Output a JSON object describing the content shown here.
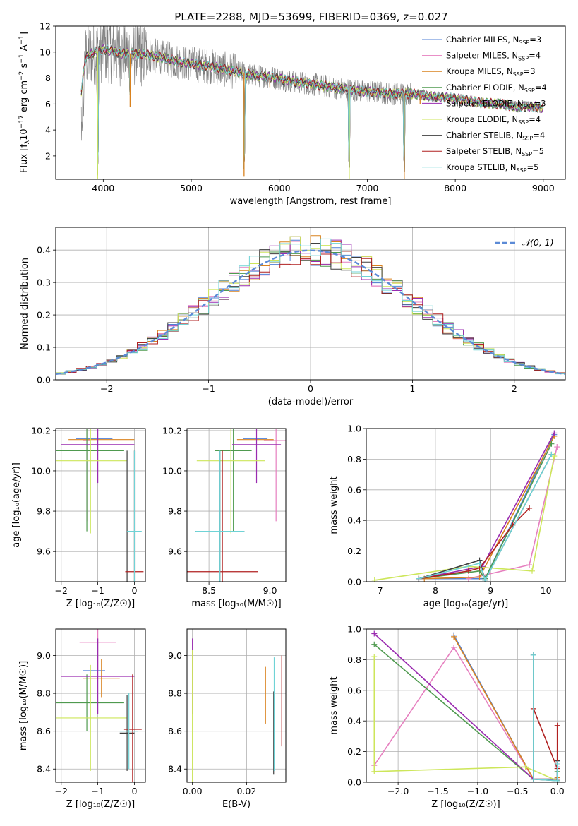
{
  "figure": {
    "title": "PLATE=2288, MJD=53699, FIBERID=0369, z=0.027"
  },
  "model_colors": {
    "Chabrier MILES": "#4f7fd6",
    "Salpeter MILES": "#e67fbf",
    "Kroupa MILES": "#d9821f",
    "Chabrier ELODIE": "#4f9a4f",
    "Salpeter ELODIE": "#9a2bb0",
    "Kroupa ELODIE": "#cde65a",
    "Chabrier STELIB": "#3f3f3f",
    "Salpeter STELIB": "#b02020",
    "Kroupa STELIB": "#6fd3d6",
    "data": "#808080"
  },
  "chart_data": [
    {
      "id": "spectrum",
      "type": "line",
      "title": "PLATE=2288, MJD=53699, FIBERID=0369, z=0.027",
      "xlabel": "wavelength [Angstrom, rest frame]",
      "ylabel_parts": [
        "Flux [f",
        "λ",
        "10",
        "−17",
        " erg cm",
        "−2",
        " s",
        "−1",
        " A",
        "−1",
        "]"
      ],
      "xlim": [
        3460,
        9250
      ],
      "ylim": [
        0.2,
        12
      ],
      "xticks": [
        4000,
        5000,
        6000,
        7000,
        8000,
        9000
      ],
      "yticks": [
        2,
        4,
        6,
        8,
        10,
        12
      ],
      "grid": false,
      "legend_position": "top-right",
      "legend": [
        {
          "name": "Chabrier MILES",
          "nssp": "3"
        },
        {
          "name": "Salpeter MILES",
          "nssp": "4"
        },
        {
          "name": "Kroupa MILES",
          "nssp": "3"
        },
        {
          "name": "Chabrier ELODIE",
          "nssp": "4"
        },
        {
          "name": "Salpeter ELODIE",
          "nssp": "3"
        },
        {
          "name": "Kroupa ELODIE",
          "nssp": "4"
        },
        {
          "name": "Chabrier STELIB",
          "nssp": "4"
        },
        {
          "name": "Salpeter STELIB",
          "nssp": "5"
        },
        {
          "name": "Kroupa STELIB",
          "nssp": "5"
        }
      ],
      "continuum": {
        "x": [
          3750,
          3800,
          3900,
          4000,
          4100,
          4200,
          4300,
          4500,
          4700,
          4900,
          5100,
          5300,
          5500,
          5700,
          5900,
          6100,
          6300,
          6500,
          6700,
          6900,
          7100,
          7300,
          7500,
          7700,
          7900,
          8100,
          8300,
          8500,
          8700,
          8900,
          9000
        ],
        "y": [
          7.0,
          9.6,
          10.0,
          10.2,
          10.1,
          9.9,
          9.9,
          9.8,
          9.5,
          9.2,
          9.0,
          8.8,
          8.5,
          8.2,
          8.1,
          7.8,
          7.6,
          7.4,
          7.2,
          7.0,
          6.9,
          6.8,
          6.8,
          6.6,
          6.5,
          6.3,
          6.1,
          6.0,
          5.8,
          5.8,
          5.7
        ]
      },
      "dips": [
        {
          "x": 3935,
          "y": 0.2
        },
        {
          "x": 4305,
          "y": 5.8
        },
        {
          "x": 5600,
          "y": 0.4
        },
        {
          "x": 6795,
          "y": 0.2
        },
        {
          "x": 7420,
          "y": 0.2
        },
        {
          "x": 5893,
          "y": 7.3
        },
        {
          "x": 7600,
          "y": 6.0
        }
      ]
    },
    {
      "id": "residual_hist",
      "type": "histogram",
      "xlabel": "(data-model)/error",
      "ylabel": "Normed distribution",
      "xlim": [
        -2.5,
        2.5
      ],
      "ylim": [
        0,
        0.47
      ],
      "xticks": [
        -2,
        -1,
        0,
        1,
        2
      ],
      "yticks": [
        0.0,
        0.1,
        0.2,
        0.3,
        0.4
      ],
      "grid": true,
      "legend_position": "top-right",
      "legend_label": "𝒩(0, 1)",
      "bin_width": 0.1,
      "normal_curve": {
        "mean": 0,
        "sigma": 1
      }
    },
    {
      "id": "age_vs_Z",
      "type": "errorbar",
      "xlabel": "Z [log₁₀(Z/Z☉)]",
      "ylabel": "age  [log₁₀(age/yr)]",
      "xlim": [
        -2.15,
        0.3
      ],
      "ylim": [
        9.45,
        10.21
      ],
      "xticks": [
        -2,
        -1,
        0
      ],
      "yticks": [
        9.6,
        9.8,
        10.0,
        10.2
      ],
      "grid": true,
      "points": [
        {
          "model": "Chabrier MILES",
          "x": -1.1,
          "xerr": 0.5,
          "y": 10.16,
          "yerr": 0.0
        },
        {
          "model": "Salpeter MILES",
          "x": -1.3,
          "xerr": 0.1,
          "y": 10.15,
          "yerr": 0.4
        },
        {
          "model": "Kroupa MILES",
          "x": -0.9,
          "xerr": 0.9,
          "y": 10.155,
          "yerr": 0.0
        },
        {
          "model": "Chabrier ELODIE",
          "x": -1.3,
          "xerr": 1.0,
          "y": 10.1,
          "yerr": 0.4
        },
        {
          "model": "Salpeter ELODIE",
          "x": -1.0,
          "xerr": 1.0,
          "y": 10.13,
          "yerr": 0.19
        },
        {
          "model": "Kroupa ELODIE",
          "x": -1.2,
          "xerr": 1.0,
          "y": 10.05,
          "yerr": 0.36
        },
        {
          "model": "Chabrier STELIB",
          "x": -0.2,
          "xerr": 0.0,
          "y": 9.7,
          "yerr": 0.4
        },
        {
          "model": "Salpeter STELIB",
          "x": 0.0,
          "xerr": 0.25,
          "y": 9.5,
          "yerr": 0.6
        },
        {
          "model": "Kroupa STELIB",
          "x": 0.0,
          "xerr": 0.2,
          "y": 9.7,
          "yerr": 0.4
        }
      ]
    },
    {
      "id": "age_vs_mass",
      "type": "errorbar",
      "xlabel": "mass [log₁₀(M/M☉)]",
      "ylabel": "",
      "xlim": [
        8.32,
        9.13
      ],
      "ylim": [
        9.45,
        10.21
      ],
      "xticks": [
        8.5,
        9.0
      ],
      "yticks": [
        9.6,
        9.8,
        10.0,
        10.2
      ],
      "grid": true,
      "points": [
        {
          "model": "Chabrier MILES",
          "x": 8.88,
          "xerr": 0.1,
          "y": 10.16,
          "yerr": 0.0
        },
        {
          "model": "Salpeter MILES",
          "x": 9.05,
          "xerr": 0.1,
          "y": 10.15,
          "yerr": 0.4
        },
        {
          "model": "Kroupa MILES",
          "x": 8.88,
          "xerr": 0.15,
          "y": 10.155,
          "yerr": 0.0
        },
        {
          "model": "Chabrier ELODIE",
          "x": 8.7,
          "xerr": 0.15,
          "y": 10.1,
          "yerr": 0.4
        },
        {
          "model": "Salpeter ELODIE",
          "x": 8.89,
          "xerr": 0.2,
          "y": 10.13,
          "yerr": 0.19
        },
        {
          "model": "Kroupa ELODIE",
          "x": 8.68,
          "xerr": 0.28,
          "y": 10.05,
          "yerr": 0.36
        },
        {
          "model": "Chabrier STELIB",
          "x": 8.59,
          "xerr": 0.2,
          "y": 9.7,
          "yerr": 0.4
        },
        {
          "model": "Salpeter STELIB",
          "x": 8.61,
          "xerr": 0.29,
          "y": 9.5,
          "yerr": 0.6
        },
        {
          "model": "Kroupa STELIB",
          "x": 8.59,
          "xerr": 0.2,
          "y": 9.7,
          "yerr": 0.4
        }
      ]
    },
    {
      "id": "weight_vs_age",
      "type": "line",
      "xlabel": "age  [log₁₀(age/yr)]",
      "ylabel": "mass weight",
      "xlim": [
        6.75,
        10.35
      ],
      "ylim": [
        0,
        1
      ],
      "xticks": [
        7,
        8,
        9,
        10
      ],
      "yticks": [
        0.0,
        0.2,
        0.4,
        0.6,
        0.8,
        1.0
      ],
      "grid": true,
      "series": [
        {
          "model": "Chabrier MILES",
          "x": [
            7.7,
            8.9,
            10.15
          ],
          "y": [
            0.02,
            0.02,
            0.96
          ]
        },
        {
          "model": "Salpeter MILES",
          "x": [
            8.6,
            9.7,
            10.2
          ],
          "y": [
            0.02,
            0.11,
            0.88
          ]
        },
        {
          "model": "Kroupa MILES",
          "x": [
            7.8,
            8.8,
            10.15
          ],
          "y": [
            0.02,
            0.03,
            0.95
          ]
        },
        {
          "model": "Chabrier ELODIE",
          "x": [
            7.7,
            8.8,
            8.9,
            10.1
          ],
          "y": [
            0.02,
            0.07,
            0.02,
            0.9
          ]
        },
        {
          "model": "Salpeter ELODIE",
          "x": [
            7.7,
            8.85,
            10.15
          ],
          "y": [
            0.02,
            0.1,
            0.97
          ]
        },
        {
          "model": "Kroupa ELODIE",
          "x": [
            6.9,
            8.6,
            9.75,
            10.15
          ],
          "y": [
            0.01,
            0.1,
            0.07,
            0.82
          ]
        },
        {
          "model": "Chabrier STELIB",
          "x": [
            7.7,
            8.8,
            8.9,
            10.1
          ],
          "y": [
            0.02,
            0.14,
            0.01,
            0.83
          ]
        },
        {
          "model": "Salpeter STELIB",
          "x": [
            7.7,
            8.6,
            8.8,
            9.4,
            9.7
          ],
          "y": [
            0.02,
            0.07,
            0.09,
            0.37,
            0.48
          ]
        },
        {
          "model": "Kroupa STELIB",
          "x": [
            7.7,
            8.8,
            8.9,
            10.1
          ],
          "y": [
            0.02,
            0.12,
            0.01,
            0.83
          ]
        }
      ]
    },
    {
      "id": "mass_vs_Z",
      "type": "errorbar",
      "xlabel": "Z [log₁₀(Z/Z☉)]",
      "ylabel": "mass [log₁₀(M/M☉)]",
      "xlim": [
        -2.15,
        0.3
      ],
      "ylim": [
        8.33,
        9.14
      ],
      "xticks": [
        -2,
        -1,
        0
      ],
      "yticks": [
        8.4,
        8.6,
        8.8,
        9.0
      ],
      "grid": true,
      "points": [
        {
          "model": "Chabrier MILES",
          "x": -1.1,
          "xerr": 0.3,
          "y": 8.92,
          "yerr": 0.0
        },
        {
          "model": "Salpeter MILES",
          "x": -1.0,
          "xerr": 0.5,
          "y": 9.07,
          "yerr": 0.15
        },
        {
          "model": "Kroupa MILES",
          "x": -0.9,
          "xerr": 0.5,
          "y": 8.88,
          "yerr": 0.1
        },
        {
          "model": "Chabrier ELODIE",
          "x": -1.3,
          "xerr": 1.0,
          "y": 8.75,
          "yerr": 0.15
        },
        {
          "model": "Salpeter ELODIE",
          "x": -1.0,
          "xerr": 1.0,
          "y": 8.89,
          "yerr": 0.2
        },
        {
          "model": "Kroupa ELODIE",
          "x": -1.2,
          "xerr": 1.0,
          "y": 8.67,
          "yerr": 0.28
        },
        {
          "model": "Chabrier STELIB",
          "x": -0.2,
          "xerr": 0.2,
          "y": 8.59,
          "yerr": 0.2
        },
        {
          "model": "Salpeter STELIB",
          "x": -0.05,
          "xerr": 0.25,
          "y": 8.61,
          "yerr": 0.29
        },
        {
          "model": "Kroupa STELIB",
          "x": -0.15,
          "xerr": 0.25,
          "y": 8.6,
          "yerr": 0.2
        }
      ]
    },
    {
      "id": "mass_vs_ebv",
      "type": "errorbar",
      "xlabel": "E(B-V)",
      "ylabel": "",
      "xlim": [
        -0.002,
        0.0345
      ],
      "ylim": [
        8.33,
        9.14
      ],
      "xticks": [
        0.0,
        0.02
      ],
      "yticks": [
        8.4,
        8.6,
        8.8,
        9.0
      ],
      "grid": true,
      "points": [
        {
          "model": "Salpeter ELODIE",
          "x": 0.0,
          "xerr": 0.0,
          "y": 8.89,
          "yerr": 0.2
        },
        {
          "model": "Kroupa ELODIE",
          "x": 0.0,
          "xerr": 0.0,
          "y": 8.67,
          "yerr": 0.36
        },
        {
          "model": "Kroupa MILES",
          "x": 0.027,
          "xerr": 0.0,
          "y": 8.79,
          "yerr": 0.15
        },
        {
          "model": "Chabrier STELIB",
          "x": 0.03,
          "xerr": 0.0,
          "y": 8.59,
          "yerr": 0.22
        },
        {
          "model": "Kroupa STELIB",
          "x": 0.0302,
          "xerr": 0.0,
          "y": 8.69,
          "yerr": 0.3
        },
        {
          "model": "Salpeter STELIB",
          "x": 0.033,
          "xerr": 0.0,
          "y": 8.76,
          "yerr": 0.24
        }
      ]
    },
    {
      "id": "weight_vs_Z",
      "type": "line",
      "xlabel": "Z [log₁₀(Z/Z☉)]",
      "ylabel": "mass weight",
      "xlim": [
        -2.4,
        0.1
      ],
      "ylim": [
        0,
        1
      ],
      "xticks": [
        -2.0,
        -1.5,
        -1.0,
        -0.5,
        0.0
      ],
      "yticks": [
        0.0,
        0.2,
        0.4,
        0.6,
        0.8,
        1.0
      ],
      "grid": true,
      "series": [
        {
          "model": "Chabrier MILES",
          "x": [
            -1.3,
            -0.3,
            0.0,
            0.0
          ],
          "y": [
            0.96,
            0.02,
            0.02,
            0.14
          ]
        },
        {
          "model": "Salpeter MILES",
          "x": [
            -2.3,
            -1.3,
            -0.3,
            0.0
          ],
          "y": [
            0.11,
            0.88,
            0.02,
            0.02
          ]
        },
        {
          "model": "Kroupa MILES",
          "x": [
            -1.3,
            -0.3,
            0.0,
            0.0
          ],
          "y": [
            0.95,
            0.02,
            0.02,
            0.03
          ]
        },
        {
          "model": "Chabrier ELODIE",
          "x": [
            -2.3,
            -0.3,
            0.0,
            0.0
          ],
          "y": [
            0.9,
            0.02,
            0.02,
            0.07
          ]
        },
        {
          "model": "Salpeter ELODIE",
          "x": [
            -2.3,
            -0.3,
            0.0,
            0.0
          ],
          "y": [
            0.97,
            0.02,
            0.02,
            0.1
          ]
        },
        {
          "model": "Kroupa ELODIE",
          "x": [
            -2.3,
            -2.3,
            -0.4,
            0.0
          ],
          "y": [
            0.82,
            0.07,
            0.1,
            0.01
          ]
        },
        {
          "model": "Chabrier STELIB",
          "x": [
            -0.3,
            -0.3,
            0.0,
            0.0
          ],
          "y": [
            0.83,
            0.02,
            0.01,
            0.14
          ]
        },
        {
          "model": "Salpeter STELIB",
          "x": [
            -0.3,
            0.0,
            0.0
          ],
          "y": [
            0.48,
            0.09,
            0.37
          ]
        },
        {
          "model": "Kroupa STELIB",
          "x": [
            -0.3,
            -0.3,
            0.0,
            0.0
          ],
          "y": [
            0.83,
            0.02,
            0.01,
            0.12
          ]
        }
      ]
    }
  ]
}
